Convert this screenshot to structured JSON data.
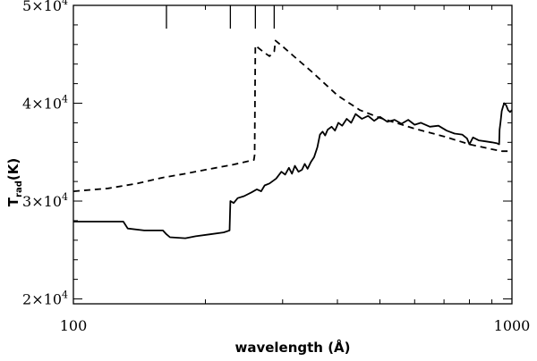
{
  "chart_data": {
    "type": "line",
    "title": "",
    "xlabel": "wavelength (Å)",
    "ylabel_main": "T",
    "ylabel_sub": "rad",
    "ylabel_suffix": "(K)",
    "x_scale": "log",
    "y_scale": "linear",
    "xlim": [
      100,
      1000
    ],
    "ylim": [
      19500,
      50000
    ],
    "x_ticks": [
      {
        "value": 100,
        "label": "100"
      },
      {
        "value": 1000,
        "label": "1000"
      }
    ],
    "y_ticks": [
      {
        "value": 20000,
        "mantissa": "2",
        "exponent": "4"
      },
      {
        "value": 30000,
        "mantissa": "3",
        "exponent": "4"
      },
      {
        "value": 40000,
        "mantissa": "4",
        "exponent": "4"
      },
      {
        "value": 50000,
        "mantissa": "5",
        "exponent": "4"
      }
    ],
    "y_tick_times": "×10",
    "edge_markers_x": [
      163,
      228,
      260,
      287
    ],
    "grid": false,
    "series": [
      {
        "style": "solid",
        "points": [
          [
            100,
            27900
          ],
          [
            130,
            27900
          ],
          [
            133,
            27200
          ],
          [
            145,
            27000
          ],
          [
            160,
            27000
          ],
          [
            163,
            26600
          ],
          [
            166,
            26300
          ],
          [
            180,
            26200
          ],
          [
            190,
            26400
          ],
          [
            205,
            26600
          ],
          [
            220,
            26800
          ],
          [
            227,
            27000
          ],
          [
            228,
            30000
          ],
          [
            232,
            29800
          ],
          [
            237,
            30300
          ],
          [
            245,
            30500
          ],
          [
            255,
            30900
          ],
          [
            262,
            31200
          ],
          [
            268,
            31000
          ],
          [
            273,
            31600
          ],
          [
            280,
            31800
          ],
          [
            290,
            32300
          ],
          [
            298,
            33000
          ],
          [
            304,
            32700
          ],
          [
            310,
            33400
          ],
          [
            315,
            32800
          ],
          [
            320,
            33600
          ],
          [
            326,
            33000
          ],
          [
            332,
            33200
          ],
          [
            337,
            33800
          ],
          [
            342,
            33300
          ],
          [
            348,
            34000
          ],
          [
            354,
            34500
          ],
          [
            360,
            35500
          ],
          [
            365,
            36800
          ],
          [
            370,
            37100
          ],
          [
            375,
            36700
          ],
          [
            380,
            37300
          ],
          [
            388,
            37600
          ],
          [
            395,
            37200
          ],
          [
            402,
            38000
          ],
          [
            410,
            37700
          ],
          [
            420,
            38400
          ],
          [
            430,
            38000
          ],
          [
            440,
            38900
          ],
          [
            455,
            38400
          ],
          [
            470,
            38700
          ],
          [
            485,
            38200
          ],
          [
            500,
            38600
          ],
          [
            520,
            38100
          ],
          [
            540,
            38300
          ],
          [
            560,
            37900
          ],
          [
            580,
            38300
          ],
          [
            600,
            37800
          ],
          [
            620,
            38000
          ],
          [
            650,
            37600
          ],
          [
            680,
            37700
          ],
          [
            710,
            37200
          ],
          [
            740,
            36900
          ],
          [
            770,
            36800
          ],
          [
            790,
            36400
          ],
          [
            800,
            35800
          ],
          [
            815,
            36500
          ],
          [
            840,
            36200
          ],
          [
            870,
            36100
          ],
          [
            900,
            36000
          ],
          [
            925,
            35900
          ],
          [
            935,
            35800
          ],
          [
            937,
            37300
          ],
          [
            942,
            38100
          ],
          [
            948,
            39200
          ],
          [
            955,
            39700
          ],
          [
            960,
            40000
          ],
          [
            970,
            39800
          ],
          [
            980,
            39300
          ],
          [
            990,
            39100
          ],
          [
            1000,
            39300
          ]
        ]
      },
      {
        "style": "dashed",
        "points": [
          [
            100,
            31000
          ],
          [
            120,
            31300
          ],
          [
            140,
            31800
          ],
          [
            160,
            32400
          ],
          [
            180,
            32800
          ],
          [
            200,
            33200
          ],
          [
            230,
            33700
          ],
          [
            258,
            34200
          ],
          [
            259,
            34700
          ],
          [
            260,
            45900
          ],
          [
            265,
            45600
          ],
          [
            272,
            45200
          ],
          [
            280,
            44800
          ],
          [
            287,
            45300
          ],
          [
            289,
            46400
          ],
          [
            300,
            45800
          ],
          [
            320,
            44700
          ],
          [
            350,
            43200
          ],
          [
            400,
            40800
          ],
          [
            450,
            39300
          ],
          [
            500,
            38500
          ],
          [
            600,
            37400
          ],
          [
            700,
            36600
          ],
          [
            800,
            35800
          ],
          [
            900,
            35300
          ],
          [
            950,
            35100
          ],
          [
            1000,
            35100
          ]
        ]
      }
    ]
  }
}
